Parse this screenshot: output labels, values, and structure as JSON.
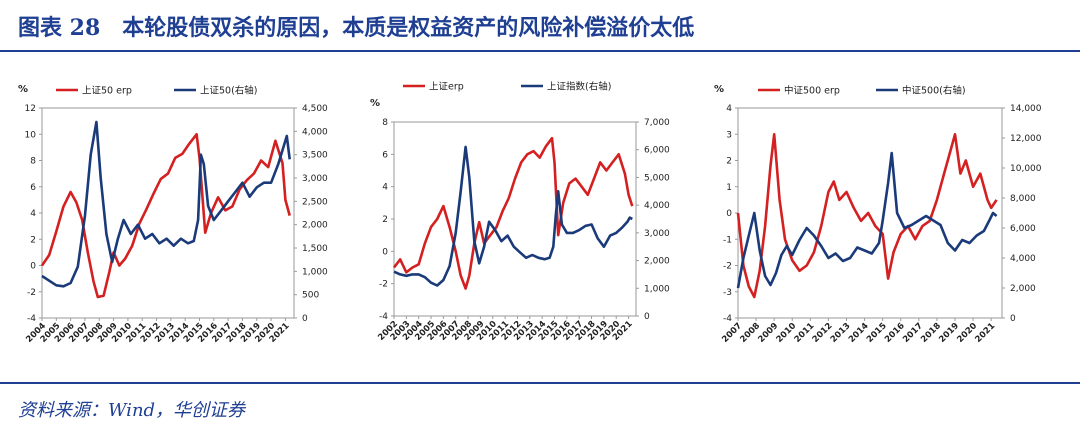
{
  "header": {
    "title": "图表 28　本轮股债双杀的原因，本质是权益资产的风险补偿溢价太低"
  },
  "footer": {
    "source": "资料来源：Wind，华创证券"
  },
  "colors": {
    "erp": "#d42020",
    "index": "#1a3a7a",
    "accent": "#1f3f93"
  },
  "chart_data": [
    {
      "type": "line",
      "unit_left": "%",
      "x_ticks": [
        "2004",
        "2005",
        "2006",
        "2007",
        "2008",
        "2009",
        "2010",
        "2011",
        "2012",
        "2013",
        "2014",
        "2015",
        "2016",
        "2017",
        "2018",
        "2019",
        "2020",
        "2021"
      ],
      "ylim_left": [
        -4,
        12
      ],
      "yticks_left": [
        "-4",
        "-2",
        "0",
        "2",
        "4",
        "6",
        "8",
        "10",
        "12"
      ],
      "ylim_right": [
        0,
        4500
      ],
      "yticks_right": [
        "0",
        "500",
        "1,000",
        "1,500",
        "2,000",
        "2,500",
        "3,000",
        "3,500",
        "4,000",
        "4,500"
      ],
      "series": [
        {
          "name": "上证50 erp",
          "axis": "left",
          "color": "#d42020",
          "x": [
            2004.0,
            2004.5,
            2005.0,
            2005.5,
            2006.0,
            2006.4,
            2006.8,
            2007.2,
            2007.6,
            2007.9,
            2008.3,
            2008.7,
            2009.0,
            2009.4,
            2009.8,
            2010.3,
            2010.8,
            2011.3,
            2011.8,
            2012.3,
            2012.8,
            2013.3,
            2013.8,
            2014.3,
            2014.8,
            2015.0,
            2015.4,
            2015.8,
            2016.3,
            2016.8,
            2017.3,
            2017.8,
            2018.3,
            2018.8,
            2019.3,
            2019.8,
            2020.3,
            2020.8,
            2021.0,
            2021.3
          ],
          "y": [
            0.0,
            0.8,
            2.6,
            4.5,
            5.6,
            4.8,
            3.5,
            1.0,
            -1.2,
            -2.4,
            -2.3,
            -0.5,
            1.0,
            0.0,
            0.5,
            1.5,
            3.2,
            4.3,
            5.5,
            6.6,
            7.0,
            8.2,
            8.5,
            9.3,
            10.0,
            8.2,
            2.5,
            4.0,
            5.2,
            4.2,
            4.5,
            5.8,
            6.5,
            7.0,
            8.0,
            7.5,
            9.5,
            7.8,
            5.0,
            3.8
          ]
        },
        {
          "name": "上证50(右轴)",
          "axis": "right",
          "color": "#1a3a7a",
          "x": [
            2004.0,
            2004.5,
            2005.0,
            2005.5,
            2006.0,
            2006.5,
            2007.0,
            2007.4,
            2007.8,
            2008.1,
            2008.5,
            2008.9,
            2009.3,
            2009.7,
            2010.2,
            2010.7,
            2011.2,
            2011.7,
            2012.2,
            2012.7,
            2013.2,
            2013.7,
            2014.2,
            2014.6,
            2014.9,
            2015.1,
            2015.3,
            2015.6,
            2016.0,
            2016.5,
            2017.0,
            2017.5,
            2018.0,
            2018.5,
            2019.0,
            2019.5,
            2020.0,
            2020.5,
            2020.9,
            2021.1,
            2021.3
          ],
          "y": [
            900,
            800,
            700,
            680,
            750,
            1100,
            2200,
            3500,
            4200,
            3000,
            1800,
            1200,
            1700,
            2100,
            1800,
            2000,
            1700,
            1800,
            1600,
            1700,
            1550,
            1700,
            1600,
            1650,
            2100,
            3500,
            3300,
            2400,
            2100,
            2300,
            2500,
            2700,
            2900,
            2600,
            2800,
            2900,
            2900,
            3300,
            3700,
            3900,
            3400
          ]
        }
      ],
      "legend": "top-center"
    },
    {
      "type": "line",
      "unit_left": "%",
      "x_ticks": [
        "2002",
        "2003",
        "2004",
        "2005",
        "2006",
        "2007",
        "2008",
        "2009",
        "2010",
        "2011",
        "2012",
        "2013",
        "2014",
        "2015",
        "2016",
        "2017",
        "2018",
        "2019",
        "2020",
        "2021"
      ],
      "ylim_left": [
        -4,
        8
      ],
      "yticks_left": [
        "-4",
        "-2",
        "0",
        "2",
        "4",
        "6",
        "8"
      ],
      "ylim_right": [
        0,
        7000
      ],
      "yticks_right": [
        "0",
        "1,000",
        "2,000",
        "3,000",
        "4,000",
        "5,000",
        "6,000",
        "7,000"
      ],
      "series": [
        {
          "name": "上证erp",
          "axis": "left",
          "color": "#d42020",
          "x": [
            2002.0,
            2002.5,
            2003.0,
            2003.5,
            2004.0,
            2004.5,
            2005.0,
            2005.5,
            2006.0,
            2006.5,
            2007.0,
            2007.4,
            2007.8,
            2008.1,
            2008.5,
            2008.9,
            2009.3,
            2009.8,
            2010.3,
            2010.8,
            2011.3,
            2011.8,
            2012.3,
            2012.8,
            2013.3,
            2013.8,
            2014.3,
            2014.8,
            2015.0,
            2015.3,
            2015.7,
            2016.2,
            2016.7,
            2017.2,
            2017.7,
            2018.2,
            2018.7,
            2019.2,
            2019.7,
            2020.2,
            2020.7,
            2021.0,
            2021.3
          ],
          "y": [
            -1.0,
            -0.5,
            -1.3,
            -1.0,
            -0.8,
            0.5,
            1.5,
            2.0,
            2.8,
            1.5,
            0.0,
            -1.5,
            -2.3,
            -1.5,
            0.5,
            1.8,
            0.5,
            1.0,
            1.5,
            2.5,
            3.3,
            4.5,
            5.5,
            6.0,
            6.2,
            5.8,
            6.5,
            7.0,
            5.5,
            1.0,
            3.0,
            4.2,
            4.5,
            4.0,
            3.5,
            4.5,
            5.5,
            5.0,
            5.5,
            6.0,
            4.8,
            3.5,
            2.8
          ]
        },
        {
          "name": "上证指数(右轴)",
          "axis": "right",
          "color": "#1a3a7a",
          "x": [
            2002.0,
            2002.5,
            2003.0,
            2003.5,
            2004.0,
            2004.5,
            2005.0,
            2005.5,
            2006.0,
            2006.5,
            2007.0,
            2007.4,
            2007.8,
            2008.1,
            2008.5,
            2008.9,
            2009.3,
            2009.7,
            2010.2,
            2010.7,
            2011.2,
            2011.7,
            2012.2,
            2012.7,
            2013.2,
            2013.7,
            2014.2,
            2014.6,
            2014.9,
            2015.1,
            2015.3,
            2015.6,
            2016.0,
            2016.5,
            2017.0,
            2017.5,
            2018.0,
            2018.5,
            2019.0,
            2019.5,
            2020.0,
            2020.5,
            2020.9,
            2021.1,
            2021.3
          ],
          "y": [
            1600,
            1500,
            1450,
            1500,
            1500,
            1400,
            1200,
            1100,
            1300,
            1800,
            3000,
            4500,
            6100,
            5000,
            2700,
            1900,
            2500,
            3400,
            3100,
            2700,
            2900,
            2500,
            2300,
            2100,
            2200,
            2100,
            2050,
            2100,
            2500,
            3600,
            4500,
            3300,
            3000,
            3000,
            3100,
            3250,
            3300,
            2800,
            2500,
            2900,
            3000,
            3200,
            3400,
            3550,
            3500
          ]
        }
      ],
      "legend": "top-center"
    },
    {
      "type": "line",
      "unit_left": "%",
      "x_ticks": [
        "2007",
        "2008",
        "2009",
        "2010",
        "2011",
        "2012",
        "2013",
        "2014",
        "2015",
        "2016",
        "2017",
        "2018",
        "2019",
        "2020",
        "2021"
      ],
      "ylim_left": [
        -4,
        4
      ],
      "yticks_left": [
        "-4",
        "-3",
        "-2",
        "-1",
        "0",
        "1",
        "2",
        "3",
        "4"
      ],
      "ylim_right": [
        0,
        14000
      ],
      "yticks_right": [
        "0",
        "2,000",
        "4,000",
        "6,000",
        "8,000",
        "10,000",
        "12,000",
        "14,000"
      ],
      "series": [
        {
          "name": "中证500 erp",
          "axis": "left",
          "color": "#d42020",
          "x": [
            2007.0,
            2007.3,
            2007.6,
            2007.9,
            2008.2,
            2008.5,
            2008.8,
            2009.0,
            2009.3,
            2009.6,
            2010.0,
            2010.4,
            2010.8,
            2011.2,
            2011.6,
            2012.0,
            2012.3,
            2012.6,
            2013.0,
            2013.4,
            2013.8,
            2014.2,
            2014.6,
            2015.0,
            2015.3,
            2015.6,
            2016.0,
            2016.4,
            2016.8,
            2017.2,
            2017.6,
            2018.0,
            2018.4,
            2018.8,
            2019.0,
            2019.3,
            2019.6,
            2020.0,
            2020.4,
            2020.8,
            2021.0,
            2021.3
          ],
          "y": [
            0.0,
            -2.0,
            -2.8,
            -3.2,
            -2.2,
            -0.5,
            1.8,
            3.0,
            0.5,
            -1.0,
            -1.8,
            -2.2,
            -2.0,
            -1.5,
            -0.5,
            0.8,
            1.2,
            0.5,
            0.8,
            0.2,
            -0.3,
            0.0,
            -0.5,
            -0.8,
            -2.5,
            -1.5,
            -0.8,
            -0.5,
            -1.0,
            -0.5,
            -0.3,
            0.5,
            1.5,
            2.5,
            3.0,
            1.5,
            2.0,
            1.0,
            1.5,
            0.5,
            0.2,
            0.5
          ]
        },
        {
          "name": "中证500(右轴)",
          "axis": "right",
          "color": "#1a3a7a",
          "x": [
            2007.0,
            2007.3,
            2007.6,
            2007.9,
            2008.2,
            2008.5,
            2008.8,
            2009.1,
            2009.4,
            2009.7,
            2010.0,
            2010.4,
            2010.8,
            2011.2,
            2011.6,
            2012.0,
            2012.4,
            2012.8,
            2013.2,
            2013.6,
            2014.0,
            2014.4,
            2014.8,
            2015.0,
            2015.3,
            2015.5,
            2015.8,
            2016.2,
            2016.6,
            2017.0,
            2017.4,
            2017.8,
            2018.2,
            2018.6,
            2019.0,
            2019.4,
            2019.8,
            2020.2,
            2020.6,
            2020.9,
            2021.1,
            2021.3
          ],
          "y": [
            2000,
            4000,
            5500,
            7000,
            4500,
            2800,
            2200,
            3000,
            4200,
            4800,
            4200,
            5200,
            6000,
            5500,
            4800,
            4000,
            4300,
            3800,
            4000,
            4700,
            4500,
            4300,
            5000,
            6500,
            9000,
            11000,
            7000,
            6000,
            6200,
            6500,
            6800,
            6500,
            6200,
            5000,
            4500,
            5200,
            5000,
            5500,
            5800,
            6500,
            7000,
            6800
          ]
        }
      ],
      "legend": "top-center"
    }
  ]
}
